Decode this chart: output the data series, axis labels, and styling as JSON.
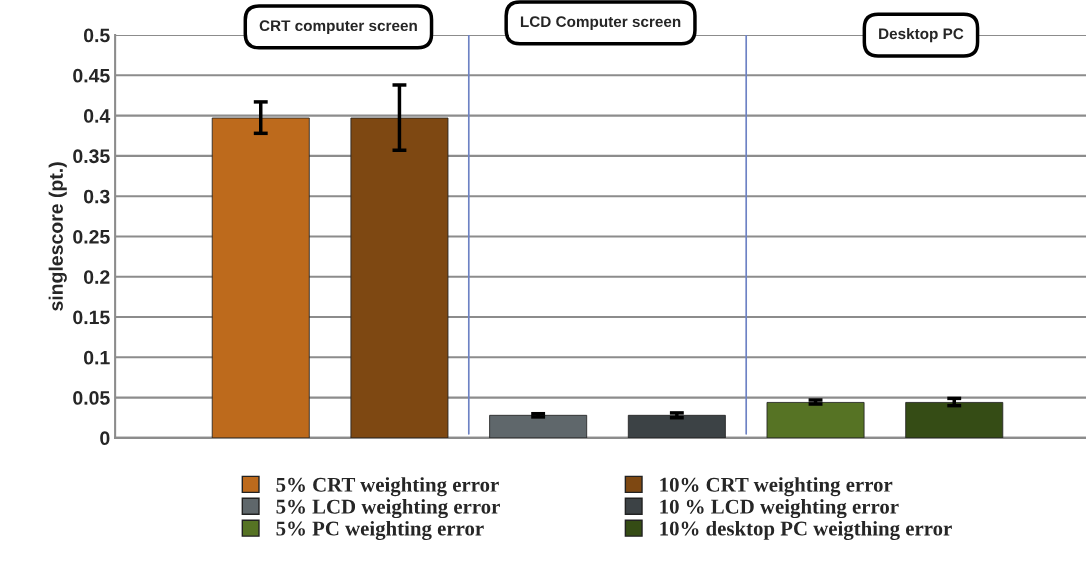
{
  "chart_data": {
    "type": "bar",
    "ylabel": "singlescore (pt.)",
    "categories": [
      null,
      null,
      null,
      null,
      null,
      null
    ],
    "ylim": [
      0,
      0.5
    ],
    "yticks": [
      0,
      0.05,
      0.1,
      0.15,
      0.2,
      0.25,
      0.3,
      0.35,
      0.4,
      0.45,
      0.5
    ],
    "grid": "y",
    "legend": "bottom",
    "series": [
      {
        "name": "5% CRT weighting error",
        "color": "#bd6a1c",
        "values": [
          0.397,
          null,
          null,
          null,
          null,
          null
        ],
        "errors": [
          [
            0.378,
            0.417
          ],
          null,
          null,
          null,
          null,
          null
        ]
      },
      {
        "name": "10% CRT weighting error",
        "color": "#7e4812",
        "values": [
          null,
          0.397,
          null,
          null,
          null,
          null
        ],
        "errors": [
          null,
          [
            0.357,
            0.438
          ],
          null,
          null,
          null,
          null
        ]
      },
      {
        "name": "5% LCD weighting error",
        "color": "#5f676b",
        "values": [
          null,
          null,
          0.028,
          null,
          null,
          null
        ],
        "errors": [
          null,
          null,
          [
            0.026,
            0.03
          ],
          null,
          null,
          null
        ]
      },
      {
        "name": "10 % LCD weighting error",
        "color": "#3c4245",
        "values": [
          null,
          null,
          null,
          0.028,
          null,
          null
        ],
        "errors": [
          null,
          null,
          null,
          [
            0.025,
            0.031
          ],
          null,
          null
        ]
      },
      {
        "name": "5% PC weighting error",
        "color": "#567324",
        "values": [
          null,
          null,
          null,
          null,
          0.044,
          null
        ],
        "errors": [
          null,
          null,
          null,
          null,
          [
            0.042,
            0.047
          ],
          null
        ]
      },
      {
        "name": "10% desktop PC weigthing error",
        "color": "#354c15",
        "values": [
          null,
          null,
          null,
          null,
          null,
          0.044
        ],
        "errors": [
          null,
          null,
          null,
          null,
          null,
          [
            0.04,
            0.049
          ]
        ]
      }
    ],
    "annotations": [
      "CRT computer screen",
      "LCD Computer screen",
      "Desktop PC"
    ]
  }
}
